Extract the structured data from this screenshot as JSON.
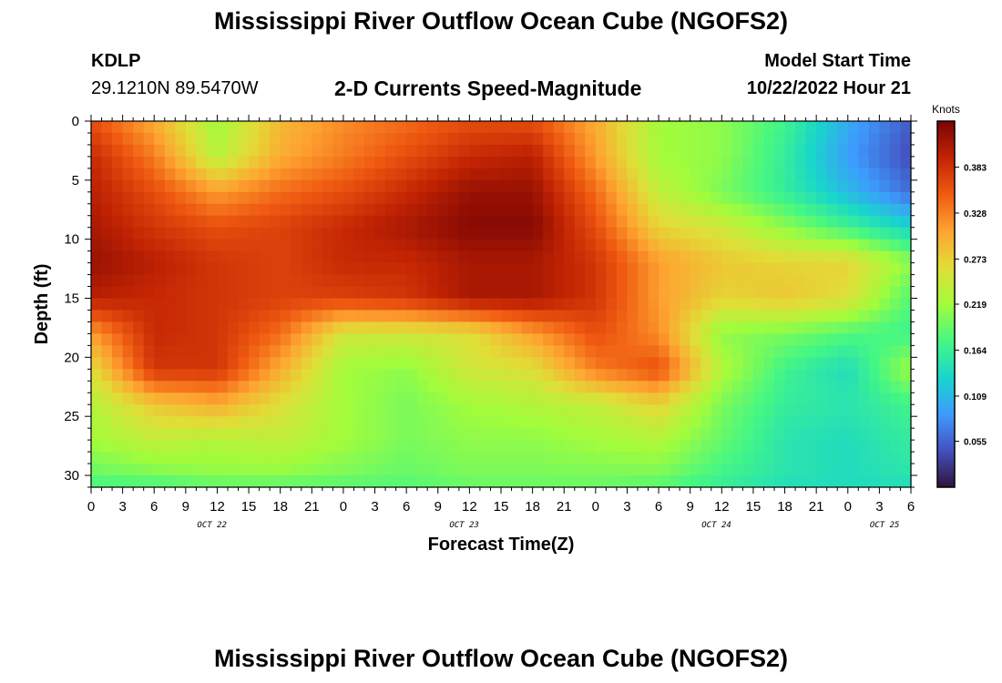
{
  "header": {
    "title": "Mississippi River Outflow Ocean Cube (NGOFS2)",
    "station": "KDLP",
    "coords": "29.1210N  89.5470W",
    "subtitle": "2-D Currents Speed-Magnitude",
    "model_label": "Model Start Time",
    "model_time": "10/22/2022 Hour 21"
  },
  "footer": {
    "title": "Mississippi River Outflow Ocean Cube (NGOFS2)"
  },
  "colors": {
    "low": "#30123b",
    "high": "#7a0403",
    "frame": "#000000"
  },
  "chart_data": {
    "type": "heatmap",
    "title": "2-D Currents Speed-Magnitude",
    "xlabel": "Forecast Time(Z)",
    "ylabel": "Depth (ft)",
    "x_range_hours": [
      0,
      78
    ],
    "y_range_ft": [
      0,
      31
    ],
    "x_tick_step_hours": 3,
    "x_tick_labels": [
      "0",
      "3",
      "6",
      "9",
      "12",
      "15",
      "18",
      "21",
      "0",
      "3",
      "6",
      "9",
      "12",
      "15",
      "18",
      "21",
      "0",
      "3",
      "6",
      "9",
      "12",
      "15",
      "18",
      "21",
      "0",
      "3",
      "6"
    ],
    "day_labels": [
      {
        "label": "OCT 22",
        "hour": 11.5
      },
      {
        "label": "OCT 23",
        "hour": 35.5
      },
      {
        "label": "OCT 24",
        "hour": 59.5
      },
      {
        "label": "OCT 25",
        "hour": 75.5
      }
    ],
    "y_ticks": [
      0,
      5,
      10,
      15,
      20,
      25,
      30
    ],
    "colorbar": {
      "unit": "Knots",
      "range": [
        0.0,
        0.438
      ],
      "ticks": [
        "0.383",
        "0.328",
        "0.273",
        "0.219",
        "0.164",
        "0.109",
        "0.055"
      ],
      "tick_values": [
        0.383,
        0.328,
        0.273,
        0.219,
        0.164,
        0.109,
        0.055
      ]
    },
    "grid_x_hours": [
      0,
      6,
      12,
      18,
      24,
      30,
      36,
      42,
      48,
      54,
      60,
      66,
      72,
      78
    ],
    "grid_y_ft": [
      0,
      3,
      6,
      9,
      12,
      15,
      18,
      21,
      24,
      27,
      30,
      31
    ],
    "speed_knots": [
      [
        0.36,
        0.3,
        0.22,
        0.29,
        0.32,
        0.34,
        0.36,
        0.36,
        0.3,
        0.22,
        0.21,
        0.17,
        0.1,
        0.05
      ],
      [
        0.39,
        0.33,
        0.23,
        0.3,
        0.33,
        0.36,
        0.39,
        0.4,
        0.31,
        0.22,
        0.21,
        0.16,
        0.09,
        0.04
      ],
      [
        0.4,
        0.36,
        0.31,
        0.34,
        0.36,
        0.39,
        0.42,
        0.42,
        0.34,
        0.24,
        0.2,
        0.16,
        0.11,
        0.06
      ],
      [
        0.41,
        0.38,
        0.36,
        0.37,
        0.39,
        0.41,
        0.43,
        0.43,
        0.36,
        0.27,
        0.25,
        0.21,
        0.17,
        0.13
      ],
      [
        0.42,
        0.4,
        0.38,
        0.37,
        0.39,
        0.39,
        0.41,
        0.41,
        0.38,
        0.31,
        0.28,
        0.27,
        0.27,
        0.21
      ],
      [
        0.4,
        0.39,
        0.38,
        0.37,
        0.37,
        0.38,
        0.41,
        0.41,
        0.38,
        0.31,
        0.27,
        0.28,
        0.26,
        0.18
      ],
      [
        0.31,
        0.39,
        0.38,
        0.34,
        0.25,
        0.25,
        0.26,
        0.31,
        0.36,
        0.32,
        0.21,
        0.2,
        0.18,
        0.17
      ],
      [
        0.26,
        0.38,
        0.38,
        0.3,
        0.22,
        0.21,
        0.25,
        0.26,
        0.33,
        0.36,
        0.23,
        0.17,
        0.14,
        0.22
      ],
      [
        0.23,
        0.28,
        0.3,
        0.26,
        0.22,
        0.2,
        0.22,
        0.23,
        0.24,
        0.27,
        0.2,
        0.16,
        0.15,
        0.17
      ],
      [
        0.22,
        0.24,
        0.23,
        0.24,
        0.22,
        0.2,
        0.21,
        0.21,
        0.22,
        0.23,
        0.19,
        0.15,
        0.14,
        0.16
      ],
      [
        0.19,
        0.2,
        0.21,
        0.21,
        0.2,
        0.19,
        0.2,
        0.2,
        0.2,
        0.2,
        0.17,
        0.15,
        0.14,
        0.15
      ],
      [
        0.17,
        0.17,
        0.18,
        0.18,
        0.18,
        0.18,
        0.19,
        0.19,
        0.19,
        0.18,
        0.16,
        0.14,
        0.14,
        0.14
      ]
    ]
  }
}
